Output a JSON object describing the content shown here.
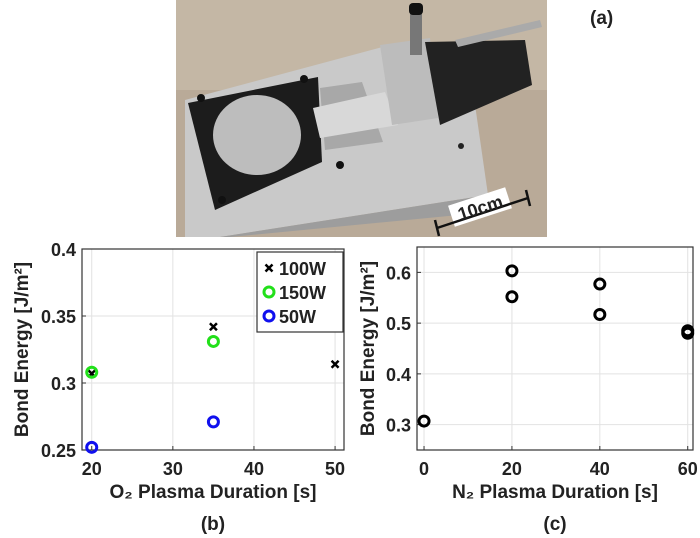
{
  "panel_a": {
    "label": "(a)",
    "scale_bar_label": "10cm"
  },
  "chart_data": [
    {
      "type": "scatter",
      "panel_label": "(b)",
      "xlabel": "O₂ Plasma Duration [s]",
      "ylabel": "Bond Energy [J/m²]",
      "xlim": [
        18.8,
        51.1
      ],
      "ylim": [
        0.25,
        0.4
      ],
      "xticks": [
        20,
        30,
        40,
        50
      ],
      "xtick_labels": [
        "20",
        "30",
        "40",
        "50"
      ],
      "yticks": [
        0.25,
        0.3,
        0.35,
        0.4
      ],
      "ytick_labels": [
        "0.25",
        "0.3",
        "0.35",
        "0.4"
      ],
      "grid": true,
      "legend_placement": "top-right",
      "series": [
        {
          "name": "100W",
          "marker": "x",
          "color": "#000000",
          "x": [
            20,
            35,
            50
          ],
          "y": [
            0.307,
            0.342,
            0.314
          ]
        },
        {
          "name": "150W",
          "marker": "o",
          "color": "#22e01a",
          "x": [
            20,
            35
          ],
          "y": [
            0.308,
            0.331
          ]
        },
        {
          "name": "50W",
          "marker": "o",
          "color": "#1010ee",
          "x": [
            20,
            35
          ],
          "y": [
            0.252,
            0.271
          ]
        }
      ]
    },
    {
      "type": "scatter",
      "panel_label": "(c)",
      "xlabel": "N₂ Plasma Duration [s]",
      "ylabel": "Bond Energy [J/m²]",
      "xlim": [
        -1.6,
        61.2
      ],
      "ylim": [
        0.25,
        0.65
      ],
      "xticks": [
        0,
        20,
        40,
        60
      ],
      "xtick_labels": [
        "0",
        "20",
        "40",
        "60"
      ],
      "yticks": [
        0.3,
        0.4,
        0.5,
        0.6
      ],
      "ytick_labels": [
        "0.3",
        "0.4",
        "0.5",
        "0.6"
      ],
      "grid": true,
      "series": [
        {
          "marker": "o",
          "color": "#000000",
          "x": [
            0,
            20,
            20,
            40,
            40,
            60,
            60
          ],
          "y": [
            0.307,
            0.603,
            0.552,
            0.577,
            0.517,
            0.485,
            0.48
          ]
        }
      ]
    }
  ]
}
